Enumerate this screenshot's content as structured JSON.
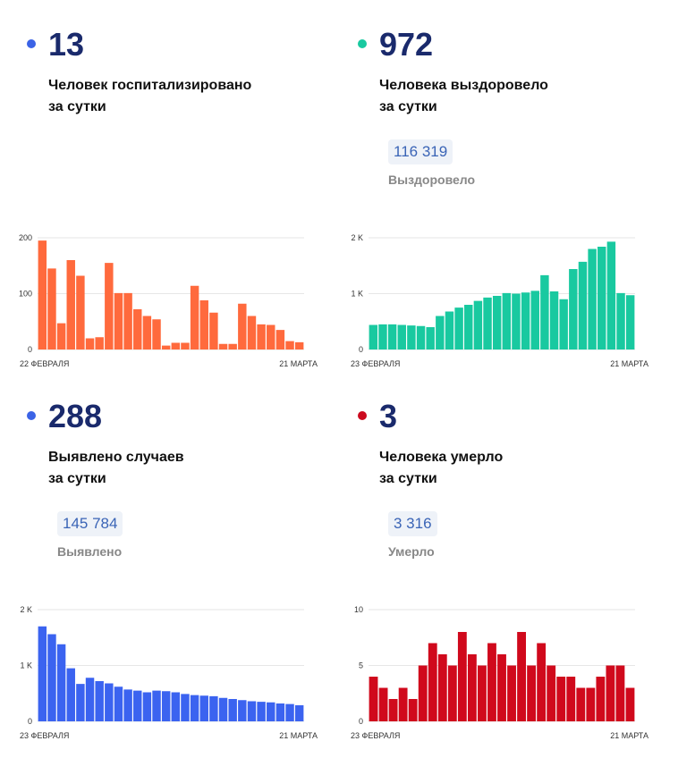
{
  "panels": [
    {
      "number": "13",
      "desc": "Человек госпитализировано\nза сутки",
      "total": "",
      "total_label": "",
      "color": "#ff6a3d",
      "dot_color": "#3b63e6"
    },
    {
      "number": "972",
      "desc": "Человека выздоровело\nза сутки",
      "total": "116 319",
      "total_label": "Выздоровело",
      "color": "#19c9a0",
      "dot_color": "#19c9a0"
    },
    {
      "number": "288",
      "desc": "Выявлено случаев\nза сутки",
      "total": "145 784",
      "total_label": "Выявлено",
      "color": "#3b63f0",
      "dot_color": "#3b63e6"
    },
    {
      "number": "3",
      "desc": "Человека умерло\nза сутки",
      "total": "3 316",
      "total_label": "Умерло",
      "color": "#d0091c",
      "dot_color": "#cc0a1e"
    }
  ],
  "chart_data": [
    {
      "type": "bar",
      "x_start_label": "22 ФЕВРАЛЯ",
      "x_end_label": "21 МАРТА",
      "yticks": [
        0,
        100,
        200
      ],
      "ytick_labels": [
        "0",
        "100",
        "200"
      ],
      "ylim": [
        0,
        200
      ],
      "values": [
        195,
        145,
        47,
        160,
        132,
        20,
        22,
        155,
        101,
        101,
        72,
        60,
        54,
        7,
        12,
        12,
        114,
        88,
        66,
        10,
        10,
        82,
        60,
        45,
        44,
        35,
        15,
        13
      ]
    },
    {
      "type": "bar",
      "x_start_label": "23 ФЕВРАЛЯ",
      "x_end_label": "21 МАРТА",
      "yticks": [
        0,
        1000,
        2000
      ],
      "ytick_labels": [
        "0",
        "1 K",
        "2 K"
      ],
      "ylim": [
        0,
        2000
      ],
      "values": [
        440,
        450,
        450,
        440,
        430,
        420,
        400,
        600,
        680,
        750,
        800,
        870,
        930,
        960,
        1010,
        1000,
        1020,
        1050,
        1330,
        1040,
        900,
        1440,
        1570,
        1800,
        1840,
        1930,
        1010,
        972
      ]
    },
    {
      "type": "bar",
      "x_start_label": "23 ФЕВРАЛЯ",
      "x_end_label": "21 МАРТА",
      "yticks": [
        0,
        1000,
        2000
      ],
      "ytick_labels": [
        "0",
        "1 K",
        "2 K"
      ],
      "ylim": [
        0,
        2000
      ],
      "values": [
        1700,
        1560,
        1380,
        950,
        670,
        780,
        720,
        680,
        620,
        570,
        550,
        520,
        550,
        540,
        520,
        490,
        470,
        460,
        450,
        420,
        400,
        380,
        360,
        350,
        340,
        320,
        310,
        288
      ]
    },
    {
      "type": "bar",
      "x_start_label": "23 ФЕВРАЛЯ",
      "x_end_label": "21 МАРТА",
      "yticks": [
        0,
        5,
        10
      ],
      "ytick_labels": [
        "0",
        "5",
        "10"
      ],
      "ylim": [
        0,
        10
      ],
      "values": [
        4,
        3,
        2,
        3,
        2,
        5,
        7,
        6,
        5,
        8,
        6,
        5,
        7,
        6,
        5,
        8,
        5,
        7,
        5,
        4,
        4,
        3,
        3,
        4,
        5,
        5,
        3
      ]
    }
  ]
}
